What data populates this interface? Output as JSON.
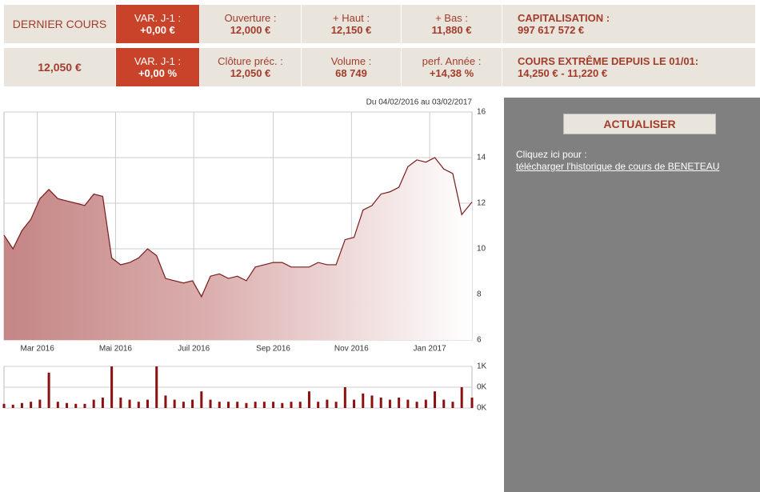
{
  "header": {
    "rows": [
      [
        "DERNIER COURS",
        {
          "label": "VAR. J-1 :",
          "value": "+0,00 €"
        },
        {
          "label": "Ouverture :",
          "value": "12,000 €"
        },
        {
          "label": "+ Haut :",
          "value": "12,150 €"
        },
        {
          "label": "+ Bas :",
          "value": "11,880 €"
        },
        {
          "label": "CAPITALISATION :",
          "value": "997 617 572 €"
        }
      ],
      [
        "12,050 €",
        {
          "label": "VAR. J-1 :",
          "value": "+0,00 %"
        },
        {
          "label": "Clôture préc. :",
          "value": "12,050 €"
        },
        {
          "label": "Volume :",
          "value": "68 749"
        },
        {
          "label": "perf. Année :",
          "value": "+14,38 %"
        },
        {
          "label": "COURS EXTRÊME DEPUIS LE 01/01:",
          "value": "14,250 € - 11,220 €"
        }
      ]
    ]
  },
  "panel": {
    "button": "ACTUALISER",
    "text": "Cliquez ici pour :",
    "link": "télécharger l'historique de cours de BENETEAU"
  },
  "chart_data": [
    {
      "type": "area",
      "subtitle": "Du 04/02/2016 au 03/02/2017",
      "x": [
        "2016-02-04",
        "2016-02-11",
        "2016-02-18",
        "2016-02-25",
        "2016-03-03",
        "2016-03-10",
        "2016-03-17",
        "2016-03-24",
        "2016-03-31",
        "2016-04-07",
        "2016-04-14",
        "2016-04-21",
        "2016-04-28",
        "2016-05-05",
        "2016-05-12",
        "2016-05-19",
        "2016-05-26",
        "2016-06-02",
        "2016-06-09",
        "2016-06-16",
        "2016-06-23",
        "2016-06-30",
        "2016-07-07",
        "2016-07-14",
        "2016-07-21",
        "2016-07-28",
        "2016-08-04",
        "2016-08-11",
        "2016-08-18",
        "2016-08-25",
        "2016-09-01",
        "2016-09-08",
        "2016-09-15",
        "2016-09-22",
        "2016-09-29",
        "2016-10-06",
        "2016-10-13",
        "2016-10-20",
        "2016-10-27",
        "2016-11-03",
        "2016-11-10",
        "2016-11-17",
        "2016-11-24",
        "2016-12-01",
        "2016-12-08",
        "2016-12-15",
        "2016-12-22",
        "2016-12-29",
        "2017-01-05",
        "2017-01-12",
        "2017-01-19",
        "2017-01-26",
        "2017-02-03"
      ],
      "series": [
        {
          "color": "#7a1a1a",
          "values": [
            10.6,
            10.0,
            10.8,
            11.3,
            12.2,
            12.6,
            12.2,
            12.1,
            12.0,
            11.9,
            12.4,
            12.3,
            9.6,
            9.3,
            9.4,
            9.6,
            10.0,
            9.7,
            8.7,
            8.6,
            8.5,
            8.6,
            7.9,
            8.8,
            8.9,
            8.7,
            8.8,
            8.6,
            9.2,
            9.3,
            9.4,
            9.4,
            9.2,
            9.2,
            9.2,
            9.4,
            9.3,
            9.3,
            10.4,
            10.5,
            11.7,
            11.9,
            12.4,
            12.5,
            12.7,
            13.6,
            13.9,
            13.8,
            14.0,
            13.5,
            13.3,
            11.5,
            12.05
          ]
        }
      ],
      "xlim": [
        "2016-02-04",
        "2017-02-03"
      ],
      "xticks": [
        {
          "value": "2016-03-01",
          "label": "Mar 2016"
        },
        {
          "value": "2016-05-01",
          "label": "Mai 2016"
        },
        {
          "value": "2016-07-01",
          "label": "Juil 2016"
        },
        {
          "value": "2016-09-01",
          "label": "Sep 2016"
        },
        {
          "value": "2016-11-01",
          "label": "Nov 2016"
        },
        {
          "value": "2017-01-01",
          "label": "Jan 2017"
        }
      ],
      "ylim": [
        6,
        16
      ],
      "yticks": [
        6,
        8,
        10,
        12,
        14,
        16
      ],
      "grid": true
    },
    {
      "type": "bar",
      "x": [
        "2016-02-04",
        "2016-02-11",
        "2016-02-18",
        "2016-02-25",
        "2016-03-03",
        "2016-03-10",
        "2016-03-17",
        "2016-03-24",
        "2016-03-31",
        "2016-04-07",
        "2016-04-14",
        "2016-04-21",
        "2016-04-28",
        "2016-05-05",
        "2016-05-12",
        "2016-05-19",
        "2016-05-26",
        "2016-06-02",
        "2016-06-09",
        "2016-06-16",
        "2016-06-23",
        "2016-06-30",
        "2016-07-07",
        "2016-07-14",
        "2016-07-21",
        "2016-07-28",
        "2016-08-04",
        "2016-08-11",
        "2016-08-18",
        "2016-08-25",
        "2016-09-01",
        "2016-09-08",
        "2016-09-15",
        "2016-09-22",
        "2016-09-29",
        "2016-10-06",
        "2016-10-13",
        "2016-10-20",
        "2016-10-27",
        "2016-11-03",
        "2016-11-10",
        "2016-11-17",
        "2016-11-24",
        "2016-12-01",
        "2016-12-08",
        "2016-12-15",
        "2016-12-22",
        "2016-12-29",
        "2017-01-05",
        "2017-01-12",
        "2017-01-19",
        "2017-01-26",
        "2017-02-03"
      ],
      "series": [
        {
          "color": "#8b1010",
          "values": [
            100,
            80,
            120,
            150,
            200,
            850,
            150,
            120,
            100,
            100,
            200,
            250,
            1000,
            250,
            200,
            150,
            200,
            1000,
            300,
            200,
            150,
            200,
            400,
            200,
            150,
            150,
            150,
            120,
            150,
            150,
            150,
            120,
            150,
            150,
            400,
            150,
            200,
            150,
            500,
            200,
            350,
            300,
            250,
            200,
            250,
            200,
            150,
            200,
            400,
            200,
            150,
            500,
            250
          ]
        }
      ],
      "xlim": [
        "2016-02-04",
        "2017-02-03"
      ],
      "ylim": [
        0,
        1000
      ],
      "yticks": [
        {
          "value": 0,
          "label": "0K"
        },
        {
          "value": 500,
          "label": "0K"
        },
        {
          "value": 1000,
          "label": "1K"
        }
      ],
      "grid": true
    }
  ]
}
